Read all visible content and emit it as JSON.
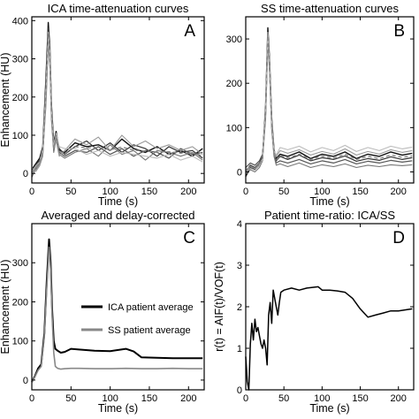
{
  "chart_data": [
    {
      "type": "line",
      "panel_letter": "A",
      "title": "ICA time-attenuation curves",
      "xlabel": "Time (s)",
      "ylabel": "Enhancement (HU)",
      "xlim": [
        0,
        220
      ],
      "ylim": [
        -25,
        410
      ],
      "xticks": [
        0,
        50,
        100,
        150,
        200
      ],
      "yticks": [
        0,
        100,
        200,
        300,
        400
      ],
      "grid": false,
      "series": [
        {
          "color": "#111111",
          "width": 1.4,
          "x": [
            0,
            5,
            10,
            14,
            18,
            21,
            23,
            25,
            28,
            31,
            35,
            42,
            55,
            70,
            85,
            100,
            115,
            130,
            145,
            160,
            175,
            190,
            205,
            218
          ],
          "y": [
            10,
            25,
            40,
            70,
            250,
            395,
            330,
            180,
            80,
            110,
            60,
            55,
            80,
            70,
            75,
            60,
            90,
            65,
            55,
            70,
            50,
            60,
            45,
            65
          ]
        },
        {
          "color": "#333333",
          "width": 1.2,
          "x": [
            0,
            5,
            10,
            14,
            18,
            21,
            23,
            25,
            28,
            31,
            35,
            42,
            55,
            70,
            85,
            100,
            115,
            130,
            145,
            160,
            175,
            190,
            205,
            218
          ],
          "y": [
            0,
            20,
            35,
            60,
            220,
            380,
            310,
            160,
            70,
            95,
            65,
            50,
            70,
            85,
            60,
            80,
            55,
            75,
            65,
            45,
            70,
            55,
            60,
            40
          ]
        },
        {
          "color": "#555555",
          "width": 1.2,
          "x": [
            0,
            5,
            10,
            14,
            18,
            21,
            23,
            25,
            28,
            31,
            35,
            42,
            55,
            70,
            85,
            100,
            115,
            130,
            145,
            160,
            175,
            190,
            205,
            218
          ],
          "y": [
            -10,
            15,
            30,
            55,
            200,
            360,
            300,
            150,
            60,
            100,
            55,
            45,
            60,
            55,
            70,
            50,
            65,
            45,
            60,
            55,
            40,
            65,
            50,
            55
          ]
        },
        {
          "color": "#777777",
          "width": 1.1,
          "x": [
            0,
            5,
            10,
            14,
            18,
            21,
            23,
            25,
            28,
            31,
            35,
            42,
            55,
            70,
            85,
            100,
            115,
            130,
            145,
            160,
            175,
            190,
            205,
            218
          ],
          "y": [
            5,
            10,
            25,
            50,
            180,
            340,
            280,
            140,
            55,
            90,
            50,
            40,
            55,
            65,
            45,
            75,
            50,
            60,
            35,
            60,
            55,
            45,
            55,
            35
          ]
        },
        {
          "color": "#999999",
          "width": 1.1,
          "x": [
            0,
            5,
            10,
            14,
            18,
            21,
            23,
            25,
            28,
            31,
            35,
            42,
            55,
            70,
            85,
            100,
            115,
            130,
            145,
            160,
            175,
            190,
            205,
            218
          ],
          "y": [
            15,
            5,
            20,
            45,
            190,
            350,
            290,
            150,
            65,
            85,
            45,
            60,
            90,
            75,
            95,
            60,
            100,
            70,
            85,
            65,
            75,
            60,
            70,
            50
          ]
        },
        {
          "color": "#bbbbbb",
          "width": 1.1,
          "x": [
            0,
            5,
            10,
            14,
            18,
            21,
            23,
            25,
            28,
            31,
            35,
            42,
            55,
            70,
            85,
            100,
            115,
            130,
            145,
            160,
            175,
            190,
            205,
            218
          ],
          "y": [
            -5,
            20,
            30,
            65,
            230,
            370,
            320,
            170,
            75,
            105,
            70,
            65,
            65,
            50,
            60,
            45,
            55,
            50,
            45,
            40,
            50,
            35,
            45,
            30
          ]
        },
        {
          "color": "#888888",
          "width": 1.4,
          "dash": "4 3",
          "x": [
            0,
            5,
            10,
            14,
            18,
            21,
            23,
            25,
            28,
            31,
            35,
            42,
            55,
            70,
            85,
            100,
            115,
            130,
            145,
            160,
            175,
            190,
            205,
            218
          ],
          "y": [
            3,
            16,
            30,
            58,
            212,
            366,
            305,
            158,
            66,
            98,
            58,
            52,
            70,
            67,
            68,
            62,
            69,
            61,
            58,
            56,
            57,
            53,
            54,
            46
          ]
        }
      ]
    },
    {
      "type": "line",
      "panel_letter": "B",
      "title": "SS time-attenuation curves",
      "xlabel": "Time (s)",
      "ylabel": "",
      "xlim": [
        0,
        220
      ],
      "ylim": [
        -25,
        350
      ],
      "xticks": [
        0,
        50,
        100,
        150,
        200
      ],
      "yticks": [
        0,
        100,
        200,
        300
      ],
      "grid": false,
      "series": [
        {
          "color": "#111111",
          "width": 1.4,
          "x": [
            0,
            6,
            12,
            18,
            22,
            26,
            29,
            31,
            34,
            37,
            40,
            45,
            55,
            70,
            85,
            100,
            115,
            130,
            145,
            160,
            175,
            190,
            205,
            218
          ],
          "y": [
            -10,
            10,
            5,
            15,
            30,
            150,
            325,
            260,
            120,
            50,
            30,
            40,
            35,
            45,
            30,
            40,
            35,
            45,
            30,
            40,
            35,
            45,
            38,
            42
          ]
        },
        {
          "color": "#333333",
          "width": 1.2,
          "x": [
            0,
            6,
            12,
            18,
            22,
            26,
            29,
            31,
            34,
            37,
            40,
            45,
            55,
            70,
            85,
            100,
            115,
            130,
            145,
            160,
            175,
            190,
            205,
            218
          ],
          "y": [
            0,
            15,
            10,
            20,
            35,
            140,
            310,
            250,
            110,
            45,
            25,
            35,
            28,
            38,
            25,
            32,
            28,
            36,
            24,
            30,
            26,
            34,
            28,
            32
          ]
        },
        {
          "color": "#555555",
          "width": 1.2,
          "x": [
            0,
            6,
            12,
            18,
            22,
            26,
            29,
            31,
            34,
            37,
            40,
            45,
            55,
            70,
            85,
            100,
            115,
            130,
            145,
            160,
            175,
            190,
            205,
            218
          ],
          "y": [
            10,
            20,
            15,
            25,
            40,
            130,
            300,
            240,
            100,
            40,
            20,
            25,
            20,
            28,
            18,
            25,
            20,
            28,
            18,
            24,
            20,
            26,
            22,
            25
          ]
        },
        {
          "color": "#777777",
          "width": 1.1,
          "x": [
            0,
            6,
            12,
            18,
            22,
            26,
            29,
            31,
            34,
            37,
            40,
            45,
            55,
            70,
            85,
            100,
            115,
            130,
            145,
            160,
            175,
            190,
            205,
            218
          ],
          "y": [
            -5,
            5,
            0,
            10,
            25,
            120,
            290,
            230,
            95,
            35,
            15,
            18,
            12,
            20,
            10,
            16,
            12,
            18,
            10,
            15,
            12,
            16,
            14,
            16
          ]
        },
        {
          "color": "#999999",
          "width": 1.1,
          "x": [
            0,
            6,
            12,
            18,
            22,
            26,
            29,
            31,
            34,
            37,
            40,
            45,
            55,
            70,
            85,
            100,
            115,
            130,
            145,
            160,
            175,
            190,
            205,
            218
          ],
          "y": [
            5,
            12,
            8,
            18,
            30,
            135,
            305,
            245,
            105,
            42,
            35,
            48,
            42,
            50,
            38,
            46,
            40,
            52,
            38,
            46,
            40,
            50,
            44,
            48
          ]
        },
        {
          "color": "#bbbbbb",
          "width": 1.1,
          "x": [
            0,
            6,
            12,
            18,
            22,
            26,
            29,
            31,
            34,
            37,
            40,
            45,
            55,
            70,
            85,
            100,
            115,
            130,
            145,
            160,
            175,
            190,
            205,
            218
          ],
          "y": [
            0,
            8,
            4,
            14,
            28,
            145,
            315,
            255,
            115,
            48,
            38,
            55,
            50,
            58,
            45,
            55,
            48,
            60,
            46,
            55,
            48,
            58,
            52,
            56
          ]
        },
        {
          "color": "#888888",
          "width": 1.4,
          "dash": "4 3",
          "x": [
            0,
            6,
            12,
            18,
            22,
            26,
            29,
            31,
            34,
            37,
            40,
            45,
            55,
            70,
            85,
            100,
            115,
            130,
            145,
            160,
            175,
            190,
            205,
            218
          ],
          "y": [
            1,
            12,
            7,
            17,
            31,
            137,
            307,
            247,
            108,
            42,
            27,
            37,
            31,
            40,
            28,
            36,
            31,
            40,
            28,
            35,
            30,
            38,
            33,
            36
          ]
        }
      ]
    },
    {
      "type": "line",
      "panel_letter": "C",
      "title": "Averaged and delay-corrected",
      "xlabel": "Time (s)",
      "ylabel": "Enhancement (HU)",
      "xlim": [
        0,
        220
      ],
      "ylim": [
        -25,
        400
      ],
      "xticks": [
        0,
        50,
        100,
        150,
        200
      ],
      "yticks": [
        0,
        100,
        200,
        300
      ],
      "grid": false,
      "legend": "center-right",
      "series": [
        {
          "name": "ICA patient average",
          "color": "#000000",
          "width": 2,
          "x": [
            0,
            4,
            8,
            12,
            16,
            19,
            22,
            24,
            26,
            28,
            30,
            33,
            37,
            42,
            50,
            60,
            80,
            100,
            120,
            130,
            140,
            160,
            180,
            200,
            218
          ],
          "y": [
            -5,
            10,
            30,
            40,
            120,
            250,
            360,
            300,
            180,
            100,
            80,
            75,
            70,
            72,
            80,
            78,
            75,
            74,
            80,
            73,
            58,
            57,
            56,
            56,
            56
          ]
        },
        {
          "name": "SS patient average",
          "color": "#888888",
          "width": 1.6,
          "x": [
            0,
            4,
            8,
            12,
            16,
            19,
            22,
            24,
            26,
            28,
            30,
            33,
            37,
            42,
            50,
            60,
            80,
            100,
            120,
            140,
            160,
            180,
            200,
            218
          ],
          "y": [
            -5,
            8,
            25,
            35,
            110,
            230,
            340,
            280,
            160,
            70,
            35,
            30,
            28,
            29,
            30,
            30,
            29,
            29,
            30,
            29,
            29,
            30,
            29,
            29
          ]
        }
      ]
    },
    {
      "type": "line",
      "panel_letter": "D",
      "title": "Patient time-ratio: ICA/SS",
      "xlabel": "Time (s)",
      "ylabel": "r(t) = AIF(t)/VOF(t)",
      "xlim": [
        0,
        220
      ],
      "ylim": [
        0,
        4
      ],
      "xticks": [
        0,
        50,
        100,
        150,
        200
      ],
      "yticks": [
        0,
        1,
        2,
        3,
        4
      ],
      "grid": false,
      "series": [
        {
          "color": "#000000",
          "width": 1.5,
          "x": [
            0,
            2,
            4,
            6,
            8,
            10,
            12,
            14,
            16,
            18,
            20,
            22,
            24,
            26,
            28,
            30,
            32,
            34,
            36,
            38,
            40,
            42,
            44,
            46,
            50,
            60,
            70,
            80,
            95,
            100,
            110,
            120,
            130,
            140,
            150,
            160,
            170,
            180,
            190,
            200,
            218
          ],
          "y": [
            0.8,
            0.2,
            0,
            1.1,
            1.6,
            1.2,
            1.7,
            1.4,
            1.5,
            1.3,
            1.1,
            1.0,
            1.2,
            1.0,
            0.6,
            1.8,
            2.1,
            1.6,
            2.4,
            2.2,
            2.0,
            1.8,
            2.1,
            2.35,
            2.4,
            2.45,
            2.4,
            2.45,
            2.48,
            2.4,
            2.4,
            2.38,
            2.35,
            2.2,
            1.95,
            1.75,
            1.8,
            1.85,
            1.9,
            1.9,
            1.95
          ]
        }
      ]
    }
  ]
}
